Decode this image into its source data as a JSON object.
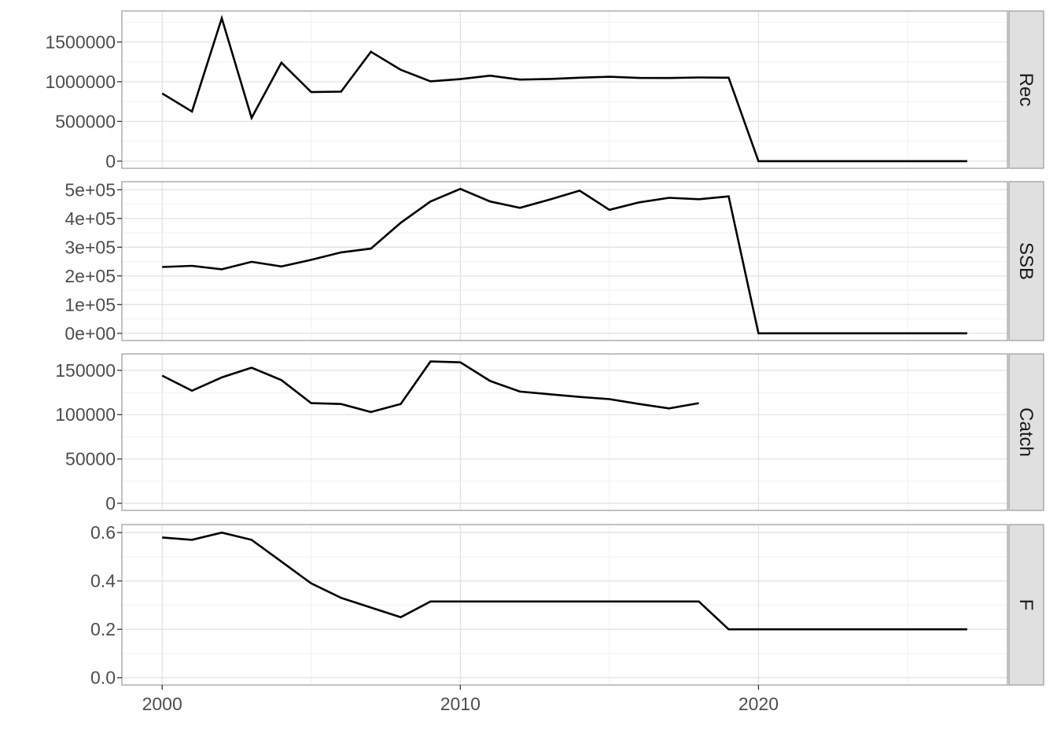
{
  "figure": {
    "background": "#ffffff",
    "axis_text_color": "#4d4d4d",
    "tick_mark_color": "#333333",
    "grid_major_color": "#e2e2e2",
    "grid_minor_color": "#efefef",
    "panel_border_color": "#a0a0a0",
    "strip_background": "#e0e0e0",
    "strip_text_color": "#1a1a1a",
    "line_color": "#000000"
  },
  "chart_data": {
    "type": "line",
    "title": "",
    "xlabel": "",
    "ylabel": "",
    "legend": "none",
    "grid": "on",
    "x": {
      "tick_labels": [
        "2000",
        "2010",
        "2020"
      ],
      "tick_values": [
        2000,
        2010,
        2020
      ],
      "minor_values": [
        2005,
        2015,
        2025
      ],
      "domain": [
        1998.65,
        2028.35
      ]
    },
    "facets": [
      {
        "label": "Rec",
        "y_tick_labels": [
          "0",
          "500000",
          "1000000",
          "1500000"
        ],
        "y_ticks": [
          0,
          500000,
          1000000,
          1500000
        ],
        "y_minor": [
          250000,
          750000,
          1250000,
          1750000
        ],
        "ylim": [
          -90000,
          1890000
        ],
        "years": [
          2000,
          2001,
          2002,
          2003,
          2004,
          2005,
          2006,
          2007,
          2008,
          2009,
          2010,
          2011,
          2012,
          2013,
          2014,
          2015,
          2016,
          2017,
          2018,
          2019,
          2020,
          2021,
          2022,
          2023,
          2024,
          2025,
          2026,
          2027
        ],
        "values": [
          852000,
          625000,
          1800000,
          545000,
          1240000,
          869000,
          875000,
          1377000,
          1150000,
          1005000,
          1033000,
          1076000,
          1027000,
          1035000,
          1050000,
          1062000,
          1048000,
          1047000,
          1053000,
          1050000,
          0,
          0,
          0,
          0,
          0,
          0,
          0,
          0
        ]
      },
      {
        "label": "SSB",
        "y_tick_labels": [
          "0e+00",
          "1e+05",
          "2e+05",
          "3e+05",
          "4e+05",
          "5e+05"
        ],
        "y_ticks": [
          0,
          100000,
          200000,
          300000,
          400000,
          500000
        ],
        "y_minor": [
          50000,
          150000,
          250000,
          350000,
          450000
        ],
        "ylim": [
          -25150,
          528150
        ],
        "years": [
          2000,
          2001,
          2002,
          2003,
          2004,
          2005,
          2006,
          2007,
          2008,
          2009,
          2010,
          2011,
          2012,
          2013,
          2014,
          2015,
          2016,
          2017,
          2018,
          2019,
          2020,
          2021,
          2022,
          2023,
          2024,
          2025,
          2026,
          2027
        ],
        "values": [
          231000,
          235000,
          223000,
          249000,
          233000,
          256000,
          282000,
          295000,
          385000,
          459000,
          503000,
          459000,
          437000,
          466000,
          497000,
          430000,
          456000,
          472000,
          467000,
          477000,
          0,
          0,
          0,
          0,
          0,
          0,
          0,
          0
        ]
      },
      {
        "label": "Catch",
        "y_tick_labels": [
          "0",
          "50000",
          "100000",
          "150000"
        ],
        "y_ticks": [
          0,
          50000,
          100000,
          150000
        ],
        "y_minor": [
          25000,
          75000,
          125000
        ],
        "ylim": [
          -8025,
          168525
        ],
        "years": [
          2000,
          2001,
          2002,
          2003,
          2004,
          2005,
          2006,
          2007,
          2008,
          2009,
          2010,
          2011,
          2012,
          2013,
          2014,
          2015,
          2016,
          2017,
          2018
        ],
        "values": [
          144000,
          127000,
          142000,
          153000,
          139000,
          113000,
          112000,
          103000,
          112000,
          160000,
          159000,
          138000,
          126000,
          123000,
          120000,
          117500,
          112000,
          107000,
          113000
        ]
      },
      {
        "label": "F",
        "y_tick_labels": [
          "0.0",
          "0.2",
          "0.4",
          "0.6"
        ],
        "y_ticks": [
          0,
          0.2,
          0.4,
          0.6
        ],
        "y_minor": [
          0.1,
          0.3,
          0.5
        ],
        "ylim": [
          -0.0302,
          0.6332
        ],
        "years": [
          2000,
          2001,
          2002,
          2003,
          2004,
          2005,
          2006,
          2007,
          2008,
          2009,
          2010,
          2011,
          2012,
          2013,
          2014,
          2015,
          2016,
          2017,
          2018,
          2019,
          2020,
          2021,
          2022,
          2023,
          2024,
          2025,
          2026,
          2027
        ],
        "values": [
          0.58,
          0.57,
          0.6,
          0.57,
          0.48,
          0.39,
          0.33,
          0.29,
          0.25,
          0.315,
          0.315,
          0.315,
          0.315,
          0.315,
          0.315,
          0.315,
          0.315,
          0.315,
          0.315,
          0.2,
          0.2,
          0.2,
          0.2,
          0.2,
          0.2,
          0.2,
          0.2,
          0.2
        ]
      }
    ]
  }
}
